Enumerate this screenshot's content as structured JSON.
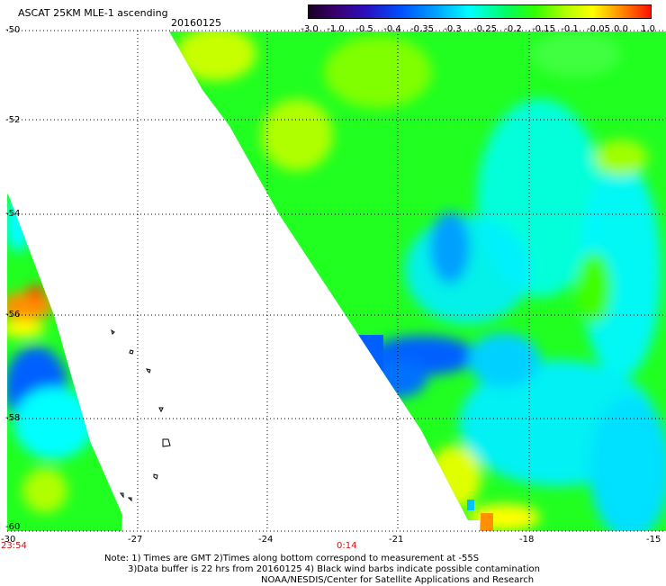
{
  "header": {
    "title": "ASCAT 25KM MLE-1 ascending",
    "date": "20160125"
  },
  "colorbar": {
    "ticks": [
      "-3.0",
      "-1.0",
      "-0.5",
      "-0.4",
      "-0.35",
      "-0.3",
      "-0.25",
      "-0.2",
      "-0.15",
      "-0.1",
      "-0.05",
      "0.0",
      "1.0"
    ]
  },
  "axes": {
    "lat_labels": [
      "-50",
      "-52",
      "-54",
      "-56",
      "-58",
      "-60"
    ],
    "lon_labels": [
      "-30",
      "-27",
      "-24",
      "-21",
      "-18",
      "-15"
    ]
  },
  "times": {
    "start": "23:54",
    "mid": "0:14"
  },
  "notes": {
    "line1": "Note: 1) Times are GMT 2)Times along bottom correspond to measurement at -55S",
    "line2": "3)Data buffer is 22 hrs from 20160125 4) Black wind barbs indicate possible contamination",
    "line3": "NOAA/NESDIS/Center for Satellite Applications and Research"
  },
  "colors": {
    "green": "#20ff20",
    "cyan": "#00ffff",
    "blue": "#0060ff",
    "yellow": "#ffff00",
    "orange": "#ff9000",
    "red_time": "#d01010"
  }
}
